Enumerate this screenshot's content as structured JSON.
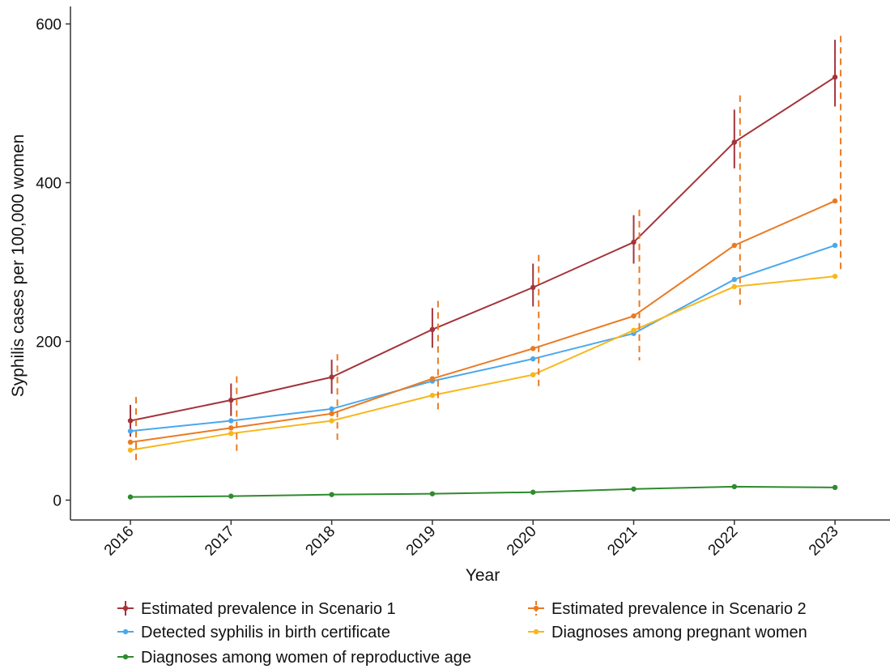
{
  "chart_data": {
    "type": "line",
    "title": "",
    "xlabel": "Year",
    "ylabel": "Syphilis cases per 100,000 women",
    "x": [
      2016,
      2017,
      2018,
      2019,
      2020,
      2021,
      2022,
      2023
    ],
    "x_tick_labels": [
      "2016",
      "2017",
      "2018",
      "2019",
      "2020",
      "2021",
      "2022",
      "2023"
    ],
    "ylim": [
      -25,
      622
    ],
    "y_ticks": [
      0,
      200,
      400,
      600
    ],
    "y_tick_labels": [
      "0",
      "200",
      "400",
      "600"
    ],
    "grid": false,
    "legend_position": "bottom",
    "series": [
      {
        "name": "Estimated prevalence in Scenario 1",
        "color": "#a4343a",
        "values": [
          100,
          126,
          155,
          215,
          268,
          325,
          451,
          533
        ],
        "error_low": [
          80,
          106,
          134,
          192,
          244,
          298,
          418,
          496
        ],
        "error_high": [
          120,
          147,
          177,
          242,
          298,
          359,
          492,
          580
        ],
        "error_style": "solid"
      },
      {
        "name": "Estimated prevalence in Scenario 2",
        "color": "#ea7a22",
        "values": [
          73,
          91,
          109,
          153,
          191,
          232,
          321,
          377
        ],
        "error_low": [
          48,
          61,
          76,
          112,
          143,
          176,
          246,
          291
        ],
        "error_high": [
          130,
          156,
          184,
          251,
          309,
          366,
          510,
          585
        ],
        "error_style": "dashed"
      },
      {
        "name": "Detected syphilis in birth certificate",
        "color": "#4aa8ee",
        "values": [
          87,
          100,
          115,
          150,
          178,
          210,
          278,
          321
        ]
      },
      {
        "name": "Diagnoses among pregnant women",
        "color": "#f7b71c",
        "values": [
          63,
          84,
          100,
          132,
          158,
          214,
          269,
          282
        ]
      },
      {
        "name": "Diagnoses among women of reproductive age",
        "color": "#2e8b2e",
        "values": [
          4,
          5,
          7,
          8,
          10,
          14,
          17,
          16
        ]
      }
    ]
  }
}
